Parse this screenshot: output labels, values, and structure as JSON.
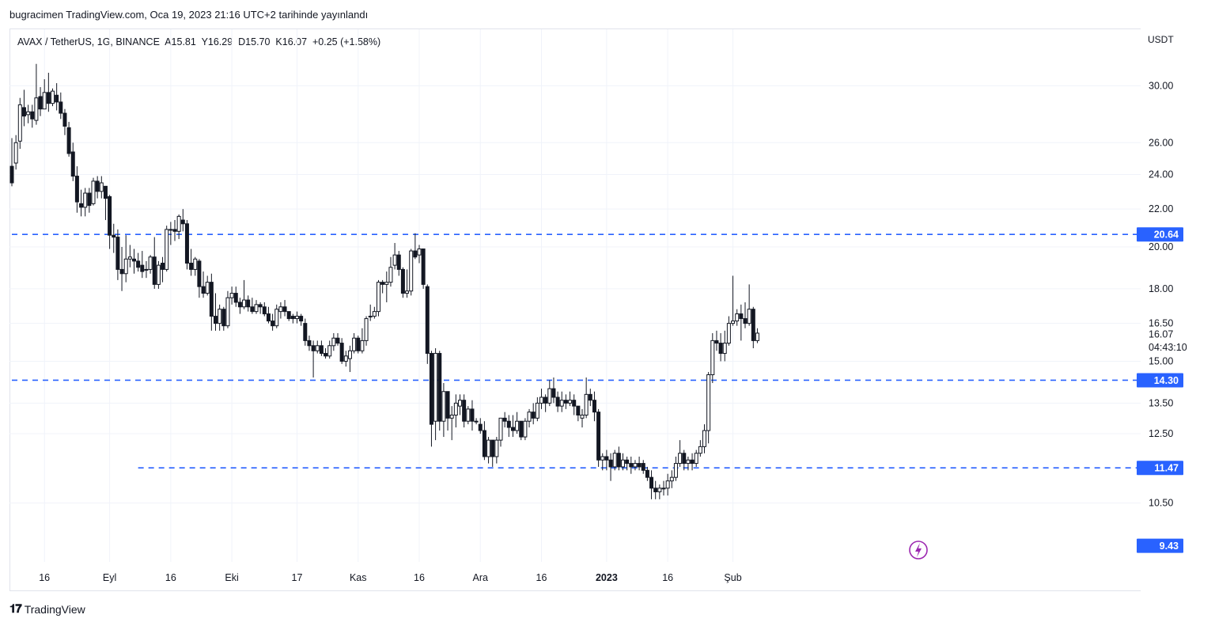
{
  "header": {
    "published": "bugracimen TradingView.com, Oca 19, 2023 21:16 UTC+2 tarihinde yayınlandı"
  },
  "legend": {
    "symbol": "AVAX / TetherUS, 1G, BINANCE",
    "open": "A15.81",
    "high": "Y16.29",
    "low": "D15.70",
    "close": "K16.07",
    "change": "+0.25 (+1.58%)"
  },
  "brand": {
    "name": "TradingView",
    "icon": "tradingview-logo"
  },
  "colors": {
    "level_line": "#2962ff",
    "axis_label_bg": "#2962ff",
    "candle_down": "#131722",
    "candle_up": "#ffffff",
    "price_label_bg": "#131722",
    "alert_icon": "#9c27b0"
  },
  "chart_data": {
    "type": "candlestick",
    "symbol": "AVAX / TetherUS",
    "interval": "1G",
    "exchange": "BINANCE",
    "yscale": "log",
    "yunit": "USDT",
    "ylim": [
      9.0,
      33.5
    ],
    "y_ticks": [
      "30.00",
      "26.00",
      "24.00",
      "22.00",
      "20.00",
      "18.00",
      "16.50",
      "15.00",
      "13.50",
      "12.50",
      "10.50"
    ],
    "x_ticks": [
      "16",
      "Eyl",
      "16",
      "Eki",
      "17",
      "Kas",
      "16",
      "Ara",
      "16",
      "2023",
      "16",
      "Şub"
    ],
    "last_price": "16.07",
    "countdown": "04:43:10",
    "levels": [
      {
        "value": 20.64,
        "label": "20.64",
        "from": "2022-08-08"
      },
      {
        "value": 14.3,
        "label": "14.30",
        "from": "2022-08-08"
      },
      {
        "value": 11.47,
        "label": "11.47",
        "from": "2022-09-08"
      }
    ],
    "extra_axis_label": "9.43",
    "candles": [
      [
        "2022-08-08",
        24.5,
        23.5,
        26.3,
        23.3
      ],
      [
        "2022-08-09",
        24.7,
        26.0,
        26.5,
        24.3
      ],
      [
        "2022-08-10",
        26.1,
        28.6,
        29.1,
        25.6
      ],
      [
        "2022-08-11",
        28.4,
        27.8,
        29.7,
        27.1
      ],
      [
        "2022-08-12",
        27.9,
        28.1,
        28.6,
        27.3
      ],
      [
        "2022-08-13",
        28.1,
        27.6,
        28.6,
        27.0
      ],
      [
        "2022-08-14",
        27.5,
        29.1,
        31.7,
        27.2
      ],
      [
        "2022-08-15",
        29.2,
        28.3,
        29.9,
        27.8
      ],
      [
        "2022-08-16",
        28.3,
        29.5,
        30.5,
        28.4
      ],
      [
        "2022-08-17",
        29.5,
        28.7,
        31.0,
        28.1
      ],
      [
        "2022-08-18",
        28.7,
        29.6,
        29.8,
        28.5
      ],
      [
        "2022-08-19",
        29.3,
        28.8,
        30.2,
        28.2
      ],
      [
        "2022-08-20",
        28.8,
        28.0,
        29.5,
        27.6
      ],
      [
        "2022-08-21",
        28.0,
        27.1,
        28.3,
        26.5
      ],
      [
        "2022-08-22",
        27.0,
        25.3,
        27.4,
        25.1
      ],
      [
        "2022-08-23",
        25.4,
        23.9,
        26.0,
        23.6
      ],
      [
        "2022-08-24",
        23.9,
        22.4,
        24.5,
        21.8
      ],
      [
        "2022-08-25",
        22.3,
        22.1,
        23.1,
        21.6
      ],
      [
        "2022-08-26",
        22.1,
        22.9,
        23.2,
        21.6
      ],
      [
        "2022-08-27",
        22.9,
        22.2,
        23.2,
        21.8
      ],
      [
        "2022-08-28",
        22.3,
        23.6,
        23.8,
        22.2
      ],
      [
        "2022-08-29",
        23.6,
        23.0,
        23.9,
        22.6
      ],
      [
        "2022-08-30",
        23.0,
        23.5,
        23.9,
        22.6
      ],
      [
        "2022-08-31",
        23.3,
        22.6,
        23.3,
        21.4
      ],
      [
        "2022-09-01",
        22.7,
        20.6,
        22.8,
        19.9
      ],
      [
        "2022-09-02",
        20.6,
        20.5,
        21.2,
        19.7
      ],
      [
        "2022-09-03",
        20.5,
        18.9,
        20.9,
        18.4
      ],
      [
        "2022-09-04",
        18.9,
        18.7,
        20.0,
        17.9
      ],
      [
        "2022-09-05",
        18.7,
        19.4,
        20.6,
        18.3
      ],
      [
        "2022-09-06",
        19.4,
        19.5,
        20.1,
        19.0
      ],
      [
        "2022-09-07",
        19.4,
        19.3,
        19.9,
        18.7
      ],
      [
        "2022-09-08",
        19.3,
        19.0,
        19.7,
        18.8
      ],
      [
        "2022-09-09",
        19.1,
        18.8,
        19.8,
        18.5
      ],
      [
        "2022-09-10",
        18.9,
        18.9,
        19.3,
        18.5
      ],
      [
        "2022-09-11",
        18.9,
        19.5,
        19.6,
        18.7
      ],
      [
        "2022-09-12",
        19.5,
        18.2,
        20.5,
        18.0
      ],
      [
        "2022-09-13",
        18.2,
        19.1,
        19.3,
        18.0
      ],
      [
        "2022-09-14",
        19.2,
        18.9,
        19.5,
        18.3
      ],
      [
        "2022-09-15",
        18.9,
        20.9,
        21.1,
        18.8
      ],
      [
        "2022-09-16",
        20.9,
        20.9,
        21.3,
        20.1
      ],
      [
        "2022-09-17",
        20.9,
        20.8,
        21.4,
        20.3
      ],
      [
        "2022-09-18",
        20.8,
        21.6,
        21.7,
        20.4
      ],
      [
        "2022-09-19",
        21.4,
        21.2,
        22.0,
        20.8
      ],
      [
        "2022-09-20",
        21.2,
        19.2,
        21.4,
        18.9
      ],
      [
        "2022-09-21",
        19.2,
        18.9,
        19.9,
        18.6
      ],
      [
        "2022-09-22",
        18.9,
        19.4,
        19.5,
        18.6
      ],
      [
        "2022-09-23",
        19.3,
        18.1,
        19.4,
        17.6
      ],
      [
        "2022-09-24",
        18.1,
        17.8,
        18.8,
        17.6
      ],
      [
        "2022-09-25",
        17.8,
        18.3,
        18.6,
        17.7
      ],
      [
        "2022-09-26",
        18.3,
        16.8,
        18.7,
        16.2
      ],
      [
        "2022-09-27",
        16.8,
        16.5,
        17.8,
        16.2
      ],
      [
        "2022-09-28",
        16.5,
        17.1,
        17.3,
        16.2
      ],
      [
        "2022-09-29",
        17.1,
        16.4,
        17.2,
        16.2
      ],
      [
        "2022-09-30",
        16.4,
        17.6,
        17.9,
        16.3
      ],
      [
        "2022-10-01",
        17.6,
        17.8,
        18.1,
        17.3
      ],
      [
        "2022-10-02",
        17.8,
        17.4,
        18.1,
        17.2
      ],
      [
        "2022-10-03",
        17.4,
        17.2,
        17.6,
        16.9
      ],
      [
        "2022-10-04",
        17.2,
        17.5,
        18.4,
        17.1
      ],
      [
        "2022-10-05",
        17.5,
        17.2,
        17.7,
        17.0
      ],
      [
        "2022-10-06",
        17.2,
        17.0,
        17.6,
        16.9
      ],
      [
        "2022-10-07",
        17.0,
        17.3,
        17.5,
        16.9
      ],
      [
        "2022-10-08",
        17.3,
        17.2,
        17.4,
        16.9
      ],
      [
        "2022-10-09",
        17.2,
        16.9,
        17.4,
        16.8
      ],
      [
        "2022-10-10",
        16.9,
        16.6,
        17.2,
        16.5
      ],
      [
        "2022-10-11",
        16.6,
        16.4,
        16.9,
        16.2
      ],
      [
        "2022-10-12",
        16.4,
        17.1,
        17.3,
        16.3
      ],
      [
        "2022-10-13",
        17.0,
        17.2,
        17.4,
        16.7
      ],
      [
        "2022-10-14",
        17.2,
        17.0,
        17.5,
        16.8
      ],
      [
        "2022-10-15",
        17.0,
        16.7,
        17.0,
        16.6
      ],
      [
        "2022-10-16",
        16.8,
        16.7,
        16.9,
        16.5
      ],
      [
        "2022-10-17",
        16.7,
        16.8,
        17.0,
        16.5
      ],
      [
        "2022-10-18",
        16.8,
        16.6,
        16.9,
        16.4
      ],
      [
        "2022-10-19",
        16.5,
        15.8,
        16.7,
        15.6
      ],
      [
        "2022-10-20",
        15.8,
        15.6,
        16.0,
        15.4
      ],
      [
        "2022-10-21",
        15.6,
        15.4,
        15.8,
        14.4
      ],
      [
        "2022-10-22",
        15.4,
        15.6,
        15.8,
        15.3
      ],
      [
        "2022-10-23",
        15.6,
        15.3,
        15.8,
        15.2
      ],
      [
        "2022-10-24",
        15.3,
        15.2,
        15.5,
        15.1
      ],
      [
        "2022-10-25",
        15.2,
        15.6,
        15.8,
        15.1
      ],
      [
        "2022-10-26",
        15.6,
        15.9,
        16.1,
        15.4
      ],
      [
        "2022-10-27",
        15.9,
        15.7,
        16.1,
        15.6
      ],
      [
        "2022-10-28",
        15.7,
        15.0,
        15.9,
        14.9
      ],
      [
        "2022-10-29",
        15.0,
        15.2,
        15.4,
        14.8
      ],
      [
        "2022-10-30",
        15.1,
        15.4,
        15.6,
        14.6
      ],
      [
        "2022-10-31",
        15.4,
        15.9,
        16.1,
        15.3
      ],
      [
        "2022-11-01",
        15.9,
        15.4,
        16.0,
        15.3
      ],
      [
        "2022-11-02",
        15.4,
        15.8,
        16.3,
        15.3
      ],
      [
        "2022-11-03",
        15.8,
        16.7,
        16.8,
        15.6
      ],
      [
        "2022-11-04",
        16.8,
        16.8,
        17.3,
        16.6
      ],
      [
        "2022-11-05",
        16.8,
        17.0,
        17.2,
        16.7
      ],
      [
        "2022-11-06",
        17.0,
        18.3,
        18.4,
        16.8
      ],
      [
        "2022-11-07",
        18.3,
        18.2,
        18.4,
        17.8
      ],
      [
        "2022-11-08",
        18.2,
        18.3,
        18.8,
        17.4
      ],
      [
        "2022-11-09",
        18.3,
        19.0,
        19.5,
        18.1
      ],
      [
        "2022-11-10",
        19.1,
        19.6,
        20.2,
        18.9
      ],
      [
        "2022-11-11",
        19.6,
        18.9,
        19.8,
        18.6
      ],
      [
        "2022-11-12",
        18.9,
        17.8,
        19.0,
        17.6
      ],
      [
        "2022-11-13",
        17.8,
        17.9,
        18.9,
        17.6
      ],
      [
        "2022-11-14",
        17.9,
        19.8,
        19.9,
        17.7
      ],
      [
        "2022-11-15",
        19.8,
        19.5,
        20.7,
        19.4
      ],
      [
        "2022-11-16",
        19.6,
        19.9,
        20.1,
        19.2
      ],
      [
        "2022-11-17",
        19.9,
        18.2,
        19.9,
        18.0
      ],
      [
        "2022-11-18",
        18.1,
        15.3,
        18.2,
        14.9
      ],
      [
        "2022-11-19",
        15.3,
        12.8,
        15.4,
        12.1
      ],
      [
        "2022-11-20",
        12.9,
        15.3,
        15.5,
        12.3
      ],
      [
        "2022-11-21",
        15.3,
        12.9,
        15.4,
        12.6
      ],
      [
        "2022-11-22",
        12.9,
        13.9,
        14.2,
        12.4
      ],
      [
        "2022-11-23",
        13.9,
        13.0,
        13.9,
        12.6
      ],
      [
        "2022-11-24",
        13.0,
        13.1,
        13.4,
        12.3
      ],
      [
        "2022-11-25",
        13.1,
        13.5,
        13.8,
        12.7
      ],
      [
        "2022-11-26",
        13.4,
        13.6,
        13.8,
        13.1
      ],
      [
        "2022-11-27",
        13.6,
        12.9,
        13.8,
        12.7
      ],
      [
        "2022-11-28",
        12.9,
        13.3,
        13.4,
        12.8
      ],
      [
        "2022-11-29",
        13.3,
        12.9,
        13.6,
        12.6
      ],
      [
        "2022-11-30",
        12.9,
        12.9,
        13.0,
        12.8
      ],
      [
        "2022-12-01",
        12.8,
        12.6,
        13.0,
        12.5
      ],
      [
        "2022-12-02",
        12.6,
        11.8,
        12.9,
        11.7
      ],
      [
        "2022-12-03",
        11.8,
        12.3,
        12.4,
        11.6
      ],
      [
        "2022-12-04",
        12.3,
        11.8,
        12.3,
        11.5
      ],
      [
        "2022-12-05",
        11.8,
        12.3,
        12.4,
        11.6
      ],
      [
        "2022-12-06",
        12.3,
        13.0,
        13.0,
        12.1
      ],
      [
        "2022-12-07",
        13.0,
        12.9,
        13.2,
        12.7
      ],
      [
        "2022-12-08",
        12.9,
        12.7,
        13.1,
        12.4
      ],
      [
        "2022-12-09",
        12.7,
        12.6,
        13.1,
        12.4
      ],
      [
        "2022-12-10",
        12.6,
        12.9,
        13.2,
        12.5
      ],
      [
        "2022-12-11",
        12.9,
        12.4,
        12.9,
        12.3
      ],
      [
        "2022-12-12",
        12.4,
        12.9,
        13.0,
        12.3
      ],
      [
        "2022-12-13",
        12.9,
        13.2,
        13.3,
        12.7
      ],
      [
        "2022-12-14",
        13.2,
        13.0,
        13.5,
        12.8
      ],
      [
        "2022-12-15",
        13.0,
        13.5,
        13.7,
        12.9
      ],
      [
        "2022-12-16",
        13.5,
        13.7,
        14.0,
        13.3
      ],
      [
        "2022-12-17",
        13.7,
        13.5,
        13.8,
        13.2
      ],
      [
        "2022-12-18",
        13.5,
        14.0,
        14.3,
        13.4
      ],
      [
        "2022-12-19",
        14.0,
        13.7,
        14.4,
        13.5
      ],
      [
        "2022-12-20",
        13.7,
        13.4,
        13.9,
        13.2
      ],
      [
        "2022-12-21",
        13.4,
        13.6,
        13.9,
        13.2
      ],
      [
        "2022-12-22",
        13.6,
        13.5,
        13.8,
        13.3
      ],
      [
        "2022-12-23",
        13.5,
        13.6,
        13.9,
        13.4
      ],
      [
        "2022-12-24",
        13.6,
        13.4,
        13.8,
        13.1
      ],
      [
        "2022-12-25",
        13.4,
        13.1,
        13.4,
        12.9
      ],
      [
        "2022-12-26",
        13.0,
        13.1,
        13.3,
        12.7
      ],
      [
        "2022-12-27",
        13.1,
        13.8,
        14.4,
        13.0
      ],
      [
        "2022-12-28",
        13.8,
        13.6,
        14.0,
        13.4
      ],
      [
        "2022-12-29",
        13.6,
        13.2,
        13.9,
        12.9
      ],
      [
        "2022-12-30",
        13.2,
        11.7,
        13.3,
        11.5
      ],
      [
        "2022-12-31",
        11.7,
        11.8,
        11.9,
        11.4
      ],
      [
        "2023-01-01",
        11.8,
        11.7,
        12.0,
        11.4
      ],
      [
        "2023-01-02",
        11.7,
        11.5,
        11.9,
        11.1
      ],
      [
        "2023-01-03",
        11.5,
        11.9,
        12.0,
        11.4
      ],
      [
        "2023-01-04",
        11.9,
        11.5,
        12.1,
        11.4
      ],
      [
        "2023-01-05",
        11.5,
        11.7,
        11.9,
        11.4
      ],
      [
        "2023-01-06",
        11.7,
        11.6,
        11.8,
        11.4
      ],
      [
        "2023-01-07",
        11.6,
        11.5,
        11.8,
        11.3
      ],
      [
        "2023-01-08",
        11.5,
        11.6,
        11.7,
        11.4
      ],
      [
        "2023-01-09",
        11.6,
        11.5,
        11.8,
        11.4
      ],
      [
        "2023-01-10",
        11.6,
        11.4,
        11.7,
        11.3
      ],
      [
        "2023-01-11",
        11.4,
        11.2,
        11.5,
        11.1
      ],
      [
        "2023-01-12",
        11.2,
        10.9,
        11.4,
        10.6
      ],
      [
        "2023-01-13",
        10.9,
        10.8,
        11.1,
        10.6
      ],
      [
        "2023-01-14",
        10.8,
        10.9,
        11.0,
        10.6
      ],
      [
        "2023-01-15",
        10.9,
        10.9,
        11.1,
        10.7
      ],
      [
        "2023-01-16",
        10.9,
        11.1,
        11.3,
        10.7
      ],
      [
        "2023-01-17",
        11.1,
        11.2,
        11.4,
        10.9
      ],
      [
        "2023-01-18",
        11.2,
        11.6,
        11.8,
        11.1
      ],
      [
        "2023-01-19",
        11.6,
        11.9,
        12.3,
        11.5
      ],
      [
        "2023-01-20",
        11.9,
        11.6,
        12.0,
        11.4
      ],
      [
        "2023-01-21",
        11.6,
        11.7,
        11.8,
        11.4
      ],
      [
        "2023-01-22",
        11.7,
        11.6,
        11.9,
        11.4
      ],
      [
        "2023-01-23",
        11.6,
        11.9,
        12.0,
        11.5
      ],
      [
        "2023-01-24",
        11.9,
        12.1,
        12.3,
        11.8
      ],
      [
        "2023-01-25",
        12.1,
        12.6,
        12.8,
        11.9
      ],
      [
        "2023-01-26",
        12.6,
        14.5,
        14.6,
        12.2
      ],
      [
        "2023-01-27",
        14.5,
        15.8,
        16.1,
        14.2
      ],
      [
        "2023-01-28",
        15.8,
        15.7,
        16.2,
        15.4
      ],
      [
        "2023-01-29",
        15.7,
        15.3,
        16.1,
        15.0
      ],
      [
        "2023-01-30",
        15.3,
        15.7,
        16.2,
        15.0
      ],
      [
        "2023-01-31",
        15.7,
        16.5,
        16.8,
        15.6
      ],
      [
        "2023-02-01",
        16.5,
        16.6,
        18.6,
        16.4
      ],
      [
        "2023-02-02",
        16.6,
        16.9,
        17.1,
        16.4
      ],
      [
        "2023-02-03",
        16.9,
        16.7,
        17.3,
        15.8
      ],
      [
        "2023-02-04",
        16.7,
        16.5,
        17.4,
        16.3
      ],
      [
        "2023-02-05",
        16.5,
        17.1,
        18.2,
        16.4
      ],
      [
        "2023-02-06",
        17.1,
        15.8,
        17.2,
        15.5
      ],
      [
        "2023-02-07",
        15.8,
        16.1,
        16.3,
        15.7
      ]
    ]
  }
}
